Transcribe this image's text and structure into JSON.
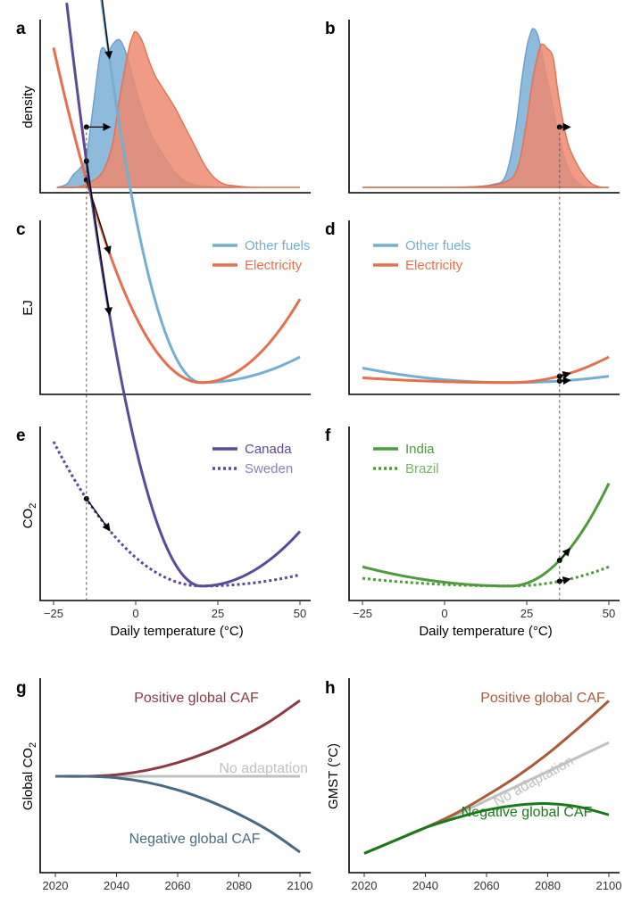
{
  "colors": {
    "other_fuels": "#74afd1",
    "electricity": "#e4704f",
    "density_blue": "#7aaed6",
    "density_red": "#ec8a70",
    "canada": "#5b4a9b",
    "sweden": "#5b4a9b",
    "sweden_text": "#8b80b8",
    "india": "#4f9a3c",
    "brazil": "#4f9a3c",
    "brazil_text": "#78b864",
    "positive_co2": "#8a3a44",
    "negative_co2": "#4a6a82",
    "no_adaptation": "#c0c0c0",
    "positive_gmst": "#a85d3a",
    "negative_gmst": "#1a7a1a"
  },
  "labels": {
    "letters": [
      "a",
      "b",
      "c",
      "d",
      "e",
      "f",
      "g",
      "h"
    ],
    "ylabel_density": "density",
    "ylabel_ej": "EJ",
    "ylabel_co2_main": "CO",
    "ylabel_co2_sub": "2",
    "ylabel_global_co2_main": "Global CO",
    "ylabel_global_co2_sub": "2",
    "ylabel_gmst": "GMST (°C)",
    "xlabel_temp": "Daily temperature (°C)"
  },
  "chart_data": [
    {
      "panel": "a",
      "type": "area",
      "xlim": [
        -25,
        50
      ],
      "ylim": [
        0,
        1
      ],
      "series": [
        {
          "color_key": "density_blue",
          "x": [
            -24,
            -21,
            -19,
            -17,
            -15,
            -13,
            -11,
            -10,
            -8.5,
            -7,
            -5,
            -3,
            -1,
            1,
            3,
            5,
            7,
            10,
            13,
            17,
            20,
            25,
            30
          ],
          "values": [
            0,
            0.02,
            0.08,
            0.12,
            0.2,
            0.5,
            0.82,
            0.88,
            0.85,
            0.9,
            0.93,
            0.85,
            0.7,
            0.55,
            0.42,
            0.32,
            0.25,
            0.15,
            0.07,
            0.02,
            0.01,
            0,
            0
          ]
        },
        {
          "color_key": "density_red",
          "x": [
            -24,
            -18,
            -14,
            -10,
            -7,
            -5,
            -3,
            -2,
            -1,
            0,
            2,
            4,
            6,
            9,
            12,
            15,
            18,
            21,
            24,
            27,
            30,
            35,
            40,
            45,
            50
          ],
          "values": [
            0,
            0,
            0.03,
            0.1,
            0.28,
            0.55,
            0.78,
            0.88,
            0.95,
            0.98,
            0.92,
            0.8,
            0.7,
            0.6,
            0.5,
            0.38,
            0.26,
            0.14,
            0.06,
            0.02,
            0.01,
            0,
            0,
            0,
            0
          ]
        }
      ],
      "marker": {
        "x0": -15,
        "x1": -8,
        "y": 0.38
      }
    },
    {
      "panel": "b",
      "type": "area",
      "xlim": [
        -25,
        50
      ],
      "ylim": [
        0,
        1
      ],
      "series": [
        {
          "color_key": "density_blue",
          "x": [
            -25,
            0,
            10,
            15,
            18,
            20,
            22,
            23.5,
            25,
            26,
            27,
            28.5,
            30,
            32,
            34,
            36,
            38,
            40,
            42,
            44,
            50
          ],
          "values": [
            0,
            0,
            0.005,
            0.02,
            0.05,
            0.18,
            0.42,
            0.68,
            0.88,
            0.96,
            1.0,
            0.95,
            0.8,
            0.6,
            0.4,
            0.22,
            0.1,
            0.04,
            0.01,
            0,
            0
          ]
        },
        {
          "color_key": "density_red",
          "x": [
            -25,
            0,
            10,
            15,
            18,
            21,
            23,
            25,
            27,
            29,
            30,
            31,
            33,
            34.5,
            36,
            37.5,
            39,
            41,
            43,
            45,
            48,
            50
          ],
          "values": [
            0,
            0,
            0.005,
            0.015,
            0.03,
            0.07,
            0.18,
            0.42,
            0.7,
            0.88,
            0.9,
            0.88,
            0.82,
            0.6,
            0.42,
            0.28,
            0.2,
            0.12,
            0.06,
            0.02,
            0,
            0
          ]
        }
      ],
      "marker": {
        "x0": 35,
        "x1": 38,
        "y": 0.38
      }
    },
    {
      "panel": "c",
      "type": "line",
      "xlim": [
        -25,
        50
      ],
      "ylim": [
        0,
        1
      ],
      "series": [
        {
          "name": "Other fuels",
          "color_key": "other_fuels",
          "dashed": false,
          "x_start": -25,
          "x_end": 50,
          "y_min": 0.04,
          "a_left": 0.00258,
          "a_right": 0.000178
        },
        {
          "name": "Electricity",
          "color_key": "electricity",
          "dashed": false,
          "x_start": -25,
          "x_end": 50,
          "y_min": 0.04,
          "a_left": 0.00103,
          "a_right": 0.000578
        }
      ],
      "arrows": [
        {
          "x0": -15,
          "x1": -8,
          "series": 0
        },
        {
          "x0": -15,
          "x1": -8,
          "series": 1
        }
      ]
    },
    {
      "panel": "d",
      "type": "line",
      "xlim": [
        -25,
        50
      ],
      "ylim": [
        0,
        1
      ],
      "series": [
        {
          "name": "Other fuels",
          "color_key": "other_fuels",
          "dashed": false,
          "x_start": -25,
          "x_end": 50,
          "y_min": 0.04,
          "a_left": 4.5e-05,
          "a_right": 4.44e-05
        },
        {
          "name": "Electricity",
          "color_key": "electricity",
          "dashed": false,
          "x_start": -25,
          "x_end": 50,
          "y_min": 0.04,
          "a_left": 1.48e-05,
          "a_right": 0.000178
        }
      ],
      "arrows": [
        {
          "x0": 35,
          "x1": 38,
          "series": 0
        },
        {
          "x0": 35,
          "x1": 38,
          "series": 1
        }
      ]
    },
    {
      "panel": "e",
      "type": "line",
      "xlim": [
        -25,
        50
      ],
      "ylim": [
        0,
        1
      ],
      "series": [
        {
          "name": "Canada",
          "color_key": "canada",
          "text_color_key": "canada",
          "dashed": false,
          "x_start": -21,
          "x_end": 50,
          "y_min": 0.04,
          "a_left": 0.00216,
          "a_right": 0.000378
        },
        {
          "name": "Sweden",
          "color_key": "sweden",
          "text_color_key": "sweden_text",
          "dashed": true,
          "x_start": -25,
          "x_end": 50,
          "y_min": 0.04,
          "a_left": 0.000444,
          "a_right": 7.78e-05
        }
      ],
      "arrows": [
        {
          "x0": -15,
          "x1": -8,
          "series": 0
        },
        {
          "x0": -15,
          "x1": -8,
          "series": 1
        }
      ]
    },
    {
      "panel": "f",
      "type": "line",
      "xlim": [
        -25,
        50
      ],
      "ylim": [
        0,
        1
      ],
      "series": [
        {
          "name": "India",
          "color_key": "india",
          "text_color_key": "india",
          "dashed": false,
          "x_start": -25,
          "x_end": 50,
          "y_min": 0.04,
          "a_left": 5.93e-05,
          "a_right": 0.000711
        },
        {
          "name": "Brazil",
          "color_key": "brazil",
          "text_color_key": "brazil_text",
          "dashed": true,
          "x_start": -25,
          "x_end": 50,
          "y_min": 0.04,
          "a_left": 2.37e-05,
          "a_right": 0.000133
        }
      ],
      "arrows": [
        {
          "x0": 35,
          "x1": 38,
          "series": 0
        },
        {
          "x0": 35,
          "x1": 38,
          "series": 1
        }
      ]
    },
    {
      "panel": "g",
      "type": "line",
      "xlim": [
        2020,
        2100
      ],
      "ylim": [
        -1,
        1
      ],
      "series": [
        {
          "name": "Positive global CAF",
          "color_key": "positive_co2",
          "x": [
            2020,
            2030,
            2040,
            2050,
            2060,
            2070,
            2080,
            2090,
            2100
          ],
          "values": [
            0,
            0,
            0.02,
            0.08,
            0.18,
            0.32,
            0.5,
            0.72,
            1.0
          ]
        },
        {
          "name": "No adaptation",
          "color_key": "no_adaptation",
          "x": [
            2020,
            2100
          ],
          "values": [
            0,
            0
          ]
        },
        {
          "name": "Negative global CAF",
          "color_key": "negative_co2",
          "x": [
            2020,
            2030,
            2040,
            2050,
            2060,
            2070,
            2080,
            2090,
            2100
          ],
          "values": [
            0,
            0,
            -0.02,
            -0.08,
            -0.18,
            -0.32,
            -0.5,
            -0.72,
            -1.0
          ]
        }
      ],
      "xticks": [
        2020,
        2040,
        2060,
        2080,
        2100
      ]
    },
    {
      "panel": "h",
      "type": "line",
      "xlim": [
        2020,
        2100
      ],
      "ylim": [
        0,
        1
      ],
      "series": [
        {
          "name": "Positive global CAF",
          "color_key": "positive_gmst",
          "x": [
            2020,
            2030,
            2040,
            2050,
            2060,
            2070,
            2080,
            2090,
            2100
          ],
          "values": [
            0.02,
            0.1,
            0.18,
            0.27,
            0.38,
            0.5,
            0.64,
            0.8,
            0.97
          ]
        },
        {
          "name": "No adaptation",
          "color_key": "no_adaptation",
          "x": [
            2020,
            2030,
            2040,
            2050,
            2060,
            2070,
            2080,
            2090,
            2100
          ],
          "values": [
            0.02,
            0.1,
            0.18,
            0.26,
            0.35,
            0.44,
            0.53,
            0.62,
            0.71
          ]
        },
        {
          "name": "Negative global CAF",
          "color_key": "negative_gmst",
          "x": [
            2020,
            2030,
            2040,
            2050,
            2060,
            2070,
            2080,
            2090,
            2100
          ],
          "values": [
            0.02,
            0.1,
            0.18,
            0.24,
            0.29,
            0.32,
            0.33,
            0.31,
            0.26
          ]
        }
      ],
      "xticks": [
        2020,
        2040,
        2060,
        2080,
        2100
      ]
    }
  ],
  "temp_ticks": [
    -25,
    0,
    25,
    50
  ],
  "temp_tick_labels": [
    "−25",
    "0",
    "25",
    "50"
  ]
}
